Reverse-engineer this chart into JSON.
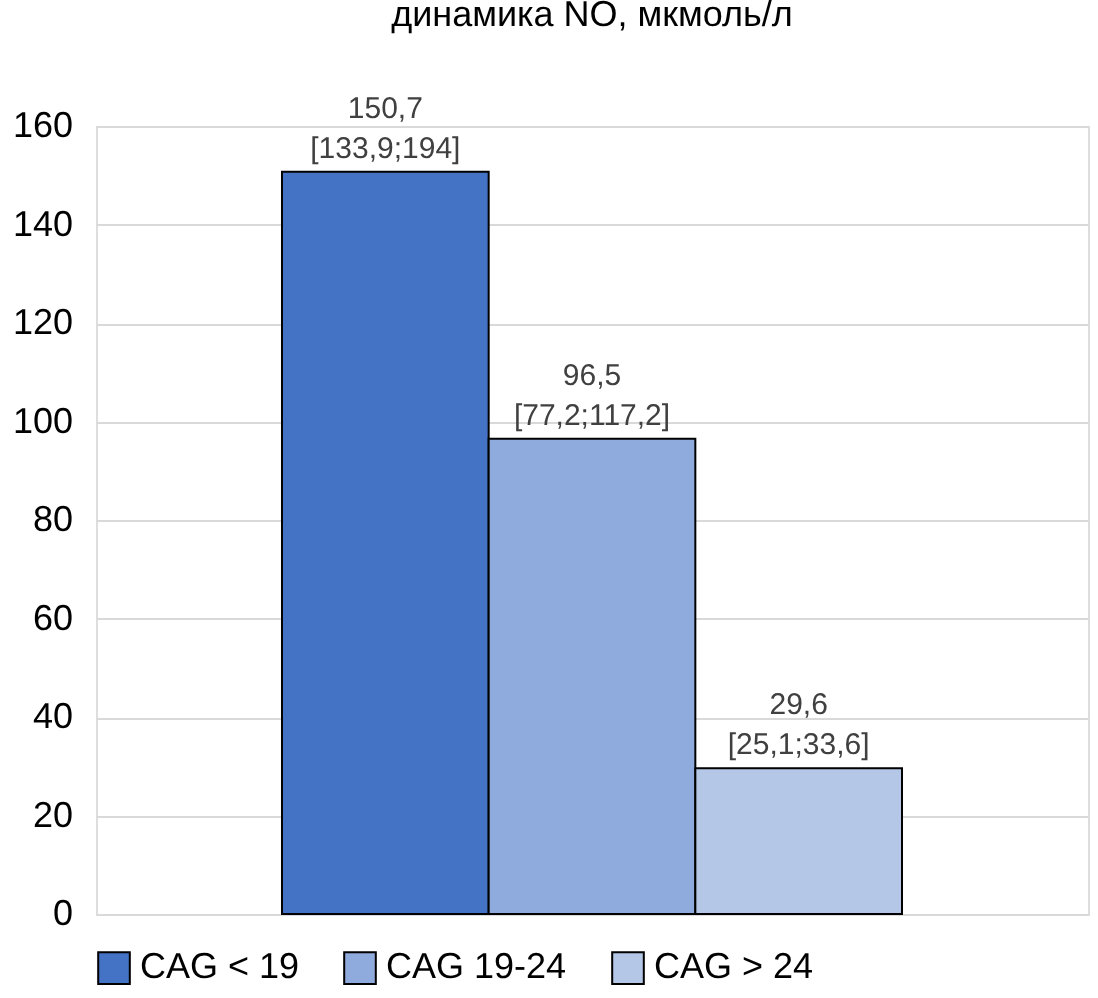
{
  "chart_data": {
    "type": "bar",
    "title": "динамика NO, мкмоль/л",
    "categories": [
      null
    ],
    "series": [
      {
        "name": "CAG < 19",
        "color": "#4472c4",
        "values": [
          150.7
        ],
        "value_labels": [
          "150,7\n[133,9;194]"
        ]
      },
      {
        "name": "CAG 19-24",
        "color": "#8faadc",
        "values": [
          96.5
        ],
        "value_labels": [
          "96,5\n[77,2;117,2]"
        ]
      },
      {
        "name": "CAG > 24",
        "color": "#b4c7e7",
        "values": [
          29.6
        ],
        "value_labels": [
          "29,6\n[25,1;33,6]"
        ]
      }
    ],
    "ylim": [
      0,
      160
    ],
    "yticks": [
      0,
      20,
      40,
      60,
      80,
      100,
      120,
      140,
      160
    ],
    "grid": "y",
    "legend": "bottom",
    "tick_labels": "y"
  }
}
